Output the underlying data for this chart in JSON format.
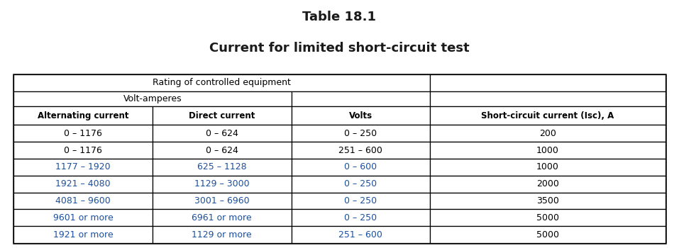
{
  "title_line1": "Table 18.1",
  "title_line2": "Current for limited short-circuit test",
  "title_color": "#1a1a1a",
  "header1_span": "Rating of controlled equipment",
  "header2_span": "Volt-amperes",
  "col_headers": [
    "Alternating current",
    "Direct current",
    "Volts",
    "Short-circuit current (Isc), A"
  ],
  "rows": [
    {
      "ac": "0 – 1176",
      "dc": "0 – 624",
      "volts": "0 – 250",
      "isc": "200",
      "colored": false
    },
    {
      "ac": "0 – 1176",
      "dc": "0 – 624",
      "volts": "251 – 600",
      "isc": "1000",
      "colored": false
    },
    {
      "ac": "1177 – 1920",
      "dc": "625 – 1128",
      "volts": "0 – 600",
      "isc": "1000",
      "colored": true
    },
    {
      "ac": "1921 – 4080",
      "dc": "1129 – 3000",
      "volts": "0 – 250",
      "isc": "2000",
      "colored": true
    },
    {
      "ac": "4081 – 9600",
      "dc": "3001 – 6960",
      "volts": "0 – 250",
      "isc": "3500",
      "colored": true
    },
    {
      "ac": "9601 or more",
      "dc": "6961 or more",
      "volts": "0 – 250",
      "isc": "5000",
      "colored": true
    },
    {
      "ac": "1921 or more",
      "dc": "1129 or more",
      "volts": "251 – 600",
      "isc": "5000",
      "colored": true
    }
  ],
  "text_color_normal": "#000000",
  "text_color_colored_ac_dc": "#1a4fa0",
  "text_color_colored_volts": "#1a4fa0",
  "text_color_colored_isc": "#000000",
  "bg_color": "#ffffff",
  "border_color": "#000000",
  "col_props": [
    0.213,
    0.213,
    0.213,
    0.361
  ]
}
